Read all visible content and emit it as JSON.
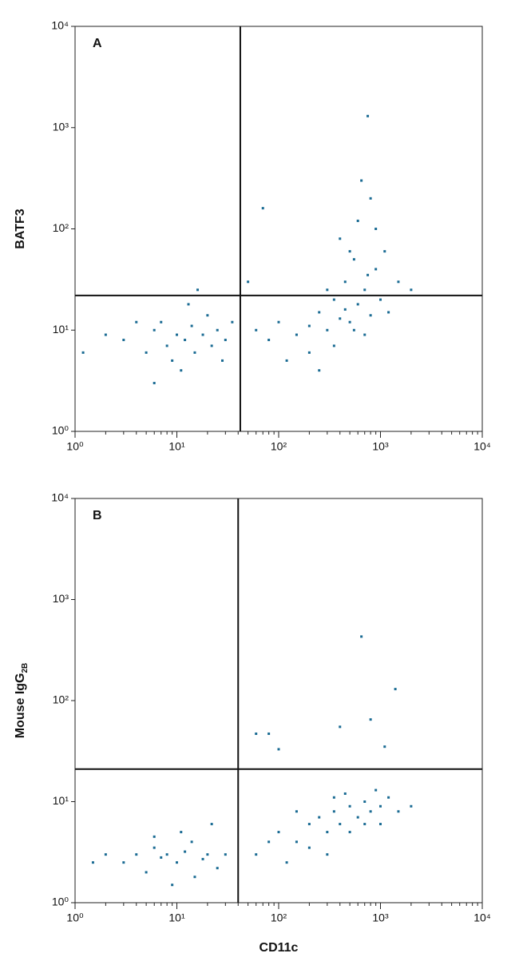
{
  "chart_data": [
    {
      "type": "scatter",
      "panel": "A",
      "ylabel": "BATF3",
      "color": "#1a6b93",
      "log": true,
      "xlim": [
        1,
        10000
      ],
      "ylim": [
        1,
        10000
      ],
      "xticks": [
        {
          "value": 1,
          "label": "10⁰"
        },
        {
          "value": 10,
          "label": "10¹"
        },
        {
          "value": 100,
          "label": "10²"
        },
        {
          "value": 1000,
          "label": "10³"
        },
        {
          "value": 10000,
          "label": "10⁴"
        }
      ],
      "yticks": [
        {
          "value": 1,
          "label": "10⁰"
        },
        {
          "value": 10,
          "label": "10¹"
        },
        {
          "value": 100,
          "label": "10²"
        },
        {
          "value": 1000,
          "label": "10³"
        },
        {
          "value": 10000,
          "label": "10⁴"
        }
      ],
      "xminorticks": [
        2,
        3,
        4,
        5,
        6,
        7,
        8,
        9,
        20,
        30,
        40,
        50,
        60,
        70,
        80,
        90,
        200,
        300,
        400,
        500,
        600,
        700,
        800,
        900,
        2000,
        3000,
        4000,
        5000,
        6000,
        7000,
        8000,
        9000
      ],
      "quadrant_x": 42,
      "quadrant_y": 22,
      "x": [
        3,
        5,
        6,
        8,
        10,
        12,
        14,
        9,
        7,
        15,
        18,
        20,
        25,
        11,
        4,
        2,
        13,
        22,
        30,
        16,
        6,
        1.2,
        35,
        28,
        60,
        80,
        100,
        150,
        200,
        250,
        300,
        350,
        400,
        450,
        500,
        550,
        600,
        700,
        800,
        900,
        1000,
        1200,
        400,
        600,
        800,
        500,
        300,
        700,
        1500,
        200,
        120,
        350,
        900,
        650,
        1100,
        250,
        450,
        550,
        750,
        750,
        70,
        50,
        2000
      ],
      "y": [
        8,
        6,
        10,
        7,
        9,
        8,
        11,
        5,
        12,
        6,
        9,
        14,
        10,
        4,
        12,
        9,
        18,
        7,
        8,
        25,
        3,
        6,
        12,
        5,
        10,
        8,
        12,
        9,
        11,
        15,
        10,
        20,
        13,
        30,
        12,
        50,
        18,
        25,
        14,
        40,
        20,
        15,
        80,
        120,
        200,
        60,
        25,
        9,
        30,
        6,
        5,
        7,
        100,
        300,
        60,
        4,
        16,
        10,
        35,
        1300,
        160,
        30,
        25
      ]
    },
    {
      "type": "scatter",
      "panel": "B",
      "ylabel": "Mouse IgG",
      "ylabel_sub": "2B",
      "xlabel": "CD11c",
      "color": "#1a6b93",
      "log": true,
      "xlim": [
        1,
        10000
      ],
      "ylim": [
        1,
        10000
      ],
      "xticks": [
        {
          "value": 1,
          "label": "10⁰"
        },
        {
          "value": 10,
          "label": "10¹"
        },
        {
          "value": 100,
          "label": "10²"
        },
        {
          "value": 1000,
          "label": "10³"
        },
        {
          "value": 10000,
          "label": "10⁴"
        }
      ],
      "yticks": [
        {
          "value": 1,
          "label": "10⁰"
        },
        {
          "value": 10,
          "label": "10¹"
        },
        {
          "value": 100,
          "label": "10²"
        },
        {
          "value": 1000,
          "label": "10³"
        },
        {
          "value": 10000,
          "label": "10⁴"
        }
      ],
      "xminorticks": [
        2,
        3,
        4,
        5,
        6,
        7,
        8,
        9,
        20,
        30,
        40,
        50,
        60,
        70,
        80,
        90,
        200,
        300,
        400,
        500,
        600,
        700,
        800,
        900,
        2000,
        3000,
        4000,
        5000,
        6000,
        7000,
        8000,
        9000
      ],
      "quadrant_x": 40,
      "quadrant_y": 21,
      "x": [
        2,
        3,
        4,
        5,
        6,
        7,
        8,
        10,
        12,
        14,
        18,
        20,
        25,
        9,
        11,
        15,
        30,
        1.5,
        6,
        22,
        60,
        80,
        100,
        150,
        200,
        250,
        300,
        350,
        400,
        500,
        600,
        700,
        800,
        1000,
        1200,
        1500,
        300,
        200,
        500,
        450,
        700,
        900,
        1000,
        150,
        120,
        350,
        2000,
        60,
        80,
        100,
        650,
        1400,
        400,
        800,
        1100
      ],
      "y": [
        3,
        2.5,
        3,
        2,
        3.5,
        2.8,
        3,
        2.5,
        3.2,
        4,
        2.7,
        3,
        2.2,
        1.5,
        5,
        1.8,
        3,
        2.5,
        4.5,
        6,
        3,
        4,
        5,
        4,
        6,
        7,
        5,
        8,
        6,
        9,
        7,
        10,
        8,
        9,
        11,
        8,
        3,
        3.5,
        5,
        12,
        6,
        13,
        6,
        8,
        2.5,
        11,
        9,
        47,
        47,
        33,
        430,
        130,
        55,
        65,
        35
      ]
    }
  ]
}
